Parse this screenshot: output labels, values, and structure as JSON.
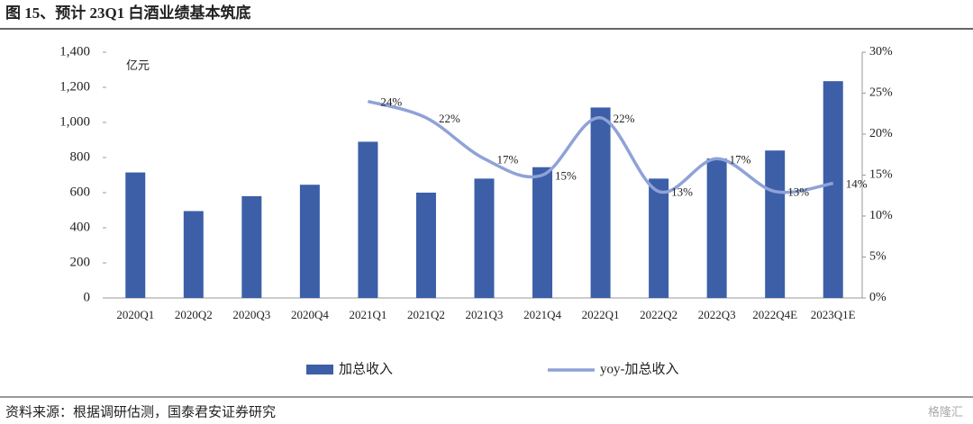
{
  "title": "图 15、预计 23Q1 白酒业绩基本筑底",
  "source": "资料来源：根据调研估测，国泰君安证券研究",
  "watermark": "格隆汇",
  "chart_data": {
    "type": "bar",
    "unit_label": "亿元",
    "categories": [
      "2020Q1",
      "2020Q2",
      "2020Q3",
      "2020Q4",
      "2021Q1",
      "2021Q2",
      "2021Q3",
      "2021Q4",
      "2022Q1",
      "2022Q2",
      "2022Q3",
      "2022Q4E",
      "2023Q1E"
    ],
    "series": [
      {
        "name": "加总收入",
        "color": "#3c5fa8",
        "values": [
          715,
          495,
          580,
          645,
          890,
          600,
          680,
          745,
          1085,
          680,
          795,
          840,
          1235
        ]
      },
      {
        "name": "yoy-加总收入",
        "color": "#8fa2d8",
        "axis": "y2",
        "type": "line",
        "values": [
          null,
          null,
          null,
          null,
          24,
          22,
          17,
          15,
          22,
          13,
          17,
          13,
          14
        ],
        "value_labels": [
          null,
          null,
          null,
          null,
          "24%",
          "22%",
          "17%",
          "15%",
          "22%",
          "13%",
          "17%",
          "13%",
          "14%"
        ]
      }
    ],
    "ylim": [
      0,
      1400
    ],
    "yticks": [
      0,
      200,
      400,
      600,
      800,
      {
        "value": 1000,
        "label": "1,000"
      },
      {
        "value": 1200,
        "label": "1,200"
      },
      {
        "value": 1400,
        "label": "1,400"
      }
    ],
    "y2lim": [
      0,
      30
    ],
    "y2ticks": [
      {
        "value": 0,
        "label": "0%"
      },
      {
        "value": 5,
        "label": "5%"
      },
      {
        "value": 10,
        "label": "10%"
      },
      {
        "value": 15,
        "label": "15%"
      },
      {
        "value": 20,
        "label": "20%"
      },
      {
        "value": 25,
        "label": "25%"
      },
      {
        "value": 30,
        "label": "30%"
      }
    ],
    "legend": "bottom"
  }
}
